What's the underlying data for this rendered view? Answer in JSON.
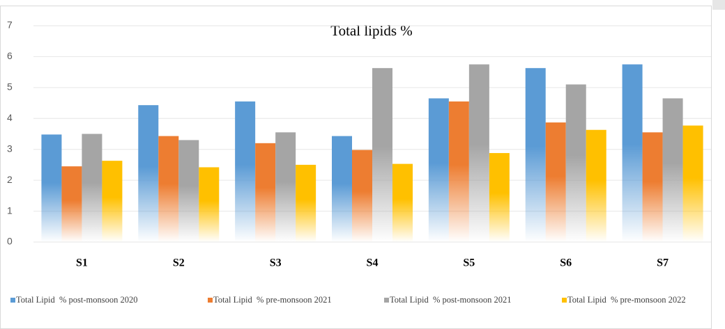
{
  "chart_data": {
    "type": "bar",
    "title": "Total lipids %",
    "categories": [
      "S1",
      "S2",
      "S3",
      "S4",
      "S5",
      "S6",
      "S7"
    ],
    "series": [
      {
        "name": "Total Lipid  % post-monsoon 2020",
        "color": "#5b9bd5",
        "values": [
          3.48,
          4.43,
          4.55,
          3.43,
          4.65,
          5.63,
          5.75
        ]
      },
      {
        "name": "Total Lipid  % pre-monsoon 2021",
        "color": "#ed7d31",
        "values": [
          2.45,
          3.43,
          3.2,
          2.98,
          4.55,
          3.87,
          3.55
        ]
      },
      {
        "name": "Total Lipid  % post-monsoon 2021",
        "color": "#a5a5a5",
        "values": [
          3.5,
          3.3,
          3.55,
          5.63,
          5.75,
          5.1,
          4.65
        ]
      },
      {
        "name": "Total Lipid  % pre-monsoon 2022",
        "color": "#ffc000",
        "values": [
          2.63,
          2.42,
          2.5,
          2.53,
          2.88,
          3.63,
          3.77
        ]
      }
    ],
    "ylim": [
      0,
      7
    ],
    "yticks": [
      0,
      1,
      2,
      3,
      4,
      5,
      6,
      7
    ],
    "grid": true,
    "legend": "bottom"
  }
}
